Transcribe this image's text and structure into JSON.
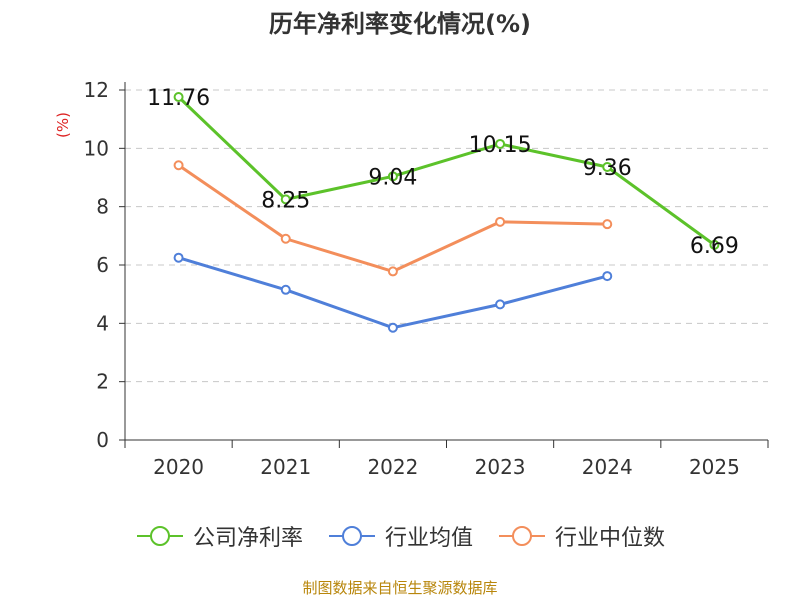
{
  "title": "历年净利率变化情况(%)",
  "source_note": "制图数据来自恒生聚源数据库",
  "chart_data": {
    "type": "line",
    "title": "历年净利率变化情况(%)",
    "ylabel": "(%)",
    "ylim": [
      0,
      12
    ],
    "yticks": [
      0,
      2,
      4,
      6,
      8,
      10,
      12
    ],
    "categories": [
      "2020",
      "2021",
      "2022",
      "2023",
      "2024",
      "2025"
    ],
    "grid": true,
    "legend_position": "bottom",
    "series": [
      {
        "name": "公司净利率",
        "color": "#5cc22a",
        "values": [
          11.76,
          8.25,
          9.04,
          10.15,
          9.36,
          6.69
        ],
        "labels": [
          "11.76",
          "8.25",
          "9.04",
          "10.15",
          "9.36",
          "6.69"
        ]
      },
      {
        "name": "行业均值",
        "color": "#4f7fd9",
        "values": [
          6.25,
          5.15,
          3.85,
          4.65,
          5.62,
          null
        ]
      },
      {
        "name": "行业中位数",
        "color": "#f38e5b",
        "values": [
          9.42,
          6.9,
          5.78,
          7.48,
          7.4,
          null
        ]
      }
    ]
  }
}
